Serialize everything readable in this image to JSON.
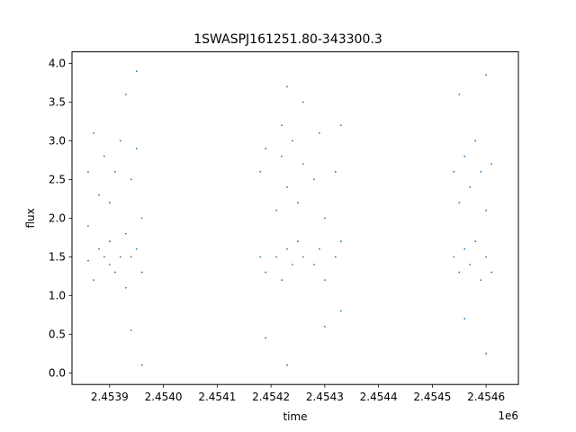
{
  "chart_data": {
    "type": "scatter",
    "title": "1SWASPJ161251.80-343300.3",
    "xlabel": "time",
    "ylabel": "flux",
    "x_offset_label": "1e6",
    "xlim": [
      2.45383,
      2.45466
    ],
    "ylim": [
      -0.15,
      4.15
    ],
    "x_ticks": [
      2.4539,
      2.454,
      2.4541,
      2.4542,
      2.4543,
      2.4544,
      2.4545,
      2.4546
    ],
    "x_tick_labels": [
      "2.4539",
      "2.4540",
      "2.4541",
      "2.4542",
      "2.4543",
      "2.4544",
      "2.4545",
      "2.4546"
    ],
    "y_ticks": [
      0.0,
      0.5,
      1.0,
      1.5,
      2.0,
      2.5,
      3.0,
      3.5,
      4.0
    ],
    "y_tick_labels": [
      "0.0",
      "0.5",
      "1.0",
      "1.5",
      "2.0",
      "2.5",
      "3.0",
      "3.5",
      "4.0"
    ],
    "grid": false,
    "marker_color": "#1f77b4",
    "series": [
      {
        "points": [
          [
            2.45386,
            1.45
          ],
          [
            2.45386,
            1.9
          ],
          [
            2.45386,
            2.6
          ],
          [
            2.45387,
            1.2
          ],
          [
            2.45387,
            3.1
          ],
          [
            2.45388,
            1.6
          ],
          [
            2.45388,
            2.3
          ],
          [
            2.45389,
            1.5
          ],
          [
            2.45389,
            2.8
          ],
          [
            2.4539,
            1.4
          ],
          [
            2.4539,
            2.2
          ],
          [
            2.4539,
            1.7
          ],
          [
            2.45391,
            1.3
          ],
          [
            2.45391,
            2.6
          ],
          [
            2.45392,
            1.5
          ],
          [
            2.45392,
            3.0
          ],
          [
            2.45393,
            1.8
          ],
          [
            2.45393,
            3.6
          ],
          [
            2.45393,
            1.1
          ],
          [
            2.45394,
            1.5
          ],
          [
            2.45394,
            2.5
          ],
          [
            2.45395,
            1.6
          ],
          [
            2.45395,
            2.9
          ],
          [
            2.45395,
            3.9
          ],
          [
            2.45396,
            1.3
          ],
          [
            2.45396,
            2.0
          ],
          [
            2.45396,
            0.1
          ],
          [
            2.45394,
            0.55
          ],
          [
            2.45418,
            1.5
          ],
          [
            2.45418,
            2.6
          ],
          [
            2.45419,
            1.3
          ],
          [
            2.45419,
            2.9
          ],
          [
            2.45419,
            0.45
          ],
          [
            2.45421,
            1.5
          ],
          [
            2.45421,
            2.1
          ],
          [
            2.45422,
            1.2
          ],
          [
            2.45422,
            2.8
          ],
          [
            2.45422,
            3.2
          ],
          [
            2.45423,
            1.6
          ],
          [
            2.45423,
            2.4
          ],
          [
            2.45423,
            3.7
          ],
          [
            2.45423,
            0.1
          ],
          [
            2.45424,
            1.4
          ],
          [
            2.45424,
            3.0
          ],
          [
            2.45425,
            1.7
          ],
          [
            2.45425,
            2.2
          ],
          [
            2.45426,
            1.5
          ],
          [
            2.45426,
            3.5
          ],
          [
            2.45426,
            2.7
          ],
          [
            2.45428,
            1.4
          ],
          [
            2.45428,
            2.5
          ],
          [
            2.45429,
            1.6
          ],
          [
            2.45429,
            3.1
          ],
          [
            2.4543,
            1.2
          ],
          [
            2.4543,
            2.0
          ],
          [
            2.4543,
            0.6
          ],
          [
            2.45432,
            1.5
          ],
          [
            2.45432,
            2.6
          ],
          [
            2.45433,
            1.7
          ],
          [
            2.45433,
            3.2
          ],
          [
            2.45433,
            0.8
          ],
          [
            2.45454,
            1.5
          ],
          [
            2.45454,
            2.6
          ],
          [
            2.45455,
            1.3
          ],
          [
            2.45455,
            2.2
          ],
          [
            2.45455,
            3.6
          ],
          [
            2.45456,
            1.6
          ],
          [
            2.45456,
            2.8
          ],
          [
            2.45456,
            0.7
          ],
          [
            2.45457,
            1.4
          ],
          [
            2.45457,
            2.4
          ],
          [
            2.45458,
            1.7
          ],
          [
            2.45458,
            3.0
          ],
          [
            2.45459,
            1.2
          ],
          [
            2.45459,
            2.6
          ],
          [
            2.4546,
            1.5
          ],
          [
            2.4546,
            2.1
          ],
          [
            2.4546,
            3.85
          ],
          [
            2.4546,
            0.25
          ],
          [
            2.45461,
            1.3
          ],
          [
            2.45461,
            2.7
          ]
        ]
      }
    ]
  }
}
